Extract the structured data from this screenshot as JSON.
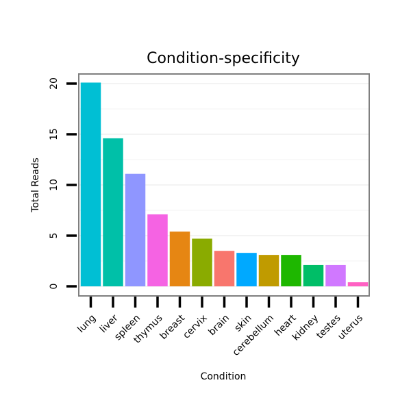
{
  "chart_data": {
    "type": "bar",
    "title": "Condition-specificity",
    "xlabel": "Condition",
    "ylabel": "Total Reads",
    "ylim": [
      0,
      20
    ],
    "yticks": [
      0,
      5,
      10,
      15,
      20
    ],
    "grid": true,
    "categories": [
      "lung",
      "liver",
      "spleen",
      "thymus",
      "breast",
      "cervix",
      "brain",
      "skin",
      "cerebellum",
      "heart",
      "kidney",
      "testes",
      "uterus"
    ],
    "values": [
      20.1,
      14.6,
      11.1,
      7.1,
      5.4,
      4.7,
      3.5,
      3.3,
      3.1,
      3.1,
      2.1,
      2.1,
      0.4
    ],
    "colors": [
      "#00BFD4",
      "#00C0A8",
      "#8F96FF",
      "#F563E3",
      "#E68613",
      "#8AAB00",
      "#F8766D",
      "#00A9FF",
      "#C09B00",
      "#1EB700",
      "#00BE67",
      "#D078FF",
      "#FF61C3"
    ]
  }
}
